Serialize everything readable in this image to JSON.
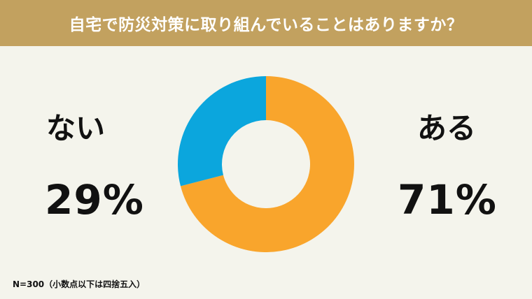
{
  "header": {
    "title": "自宅で防災対策に取り組んでいることはありますか？"
  },
  "chart_data": {
    "type": "pie",
    "donut": true,
    "categories": [
      "ある",
      "ない"
    ],
    "values": [
      71,
      29
    ],
    "value_labels": [
      "71%",
      "29%"
    ],
    "colors": [
      "#f9a52c",
      "#0ba6dd"
    ],
    "start_angle_deg": 0,
    "direction": "clockwise"
  },
  "labels": {
    "left_category": "ない",
    "left_percent": "29%",
    "right_category": "ある",
    "right_percent": "71%"
  },
  "footnote": "N=300（小数点以下は四捨五入）",
  "colors": {
    "header_bg": "#c2a15f",
    "page_bg": "#f4f4ec"
  }
}
